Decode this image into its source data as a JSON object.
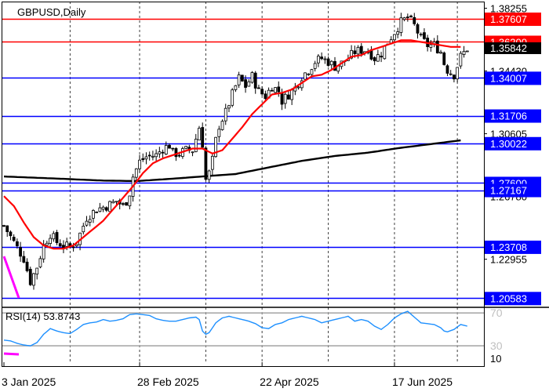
{
  "chart_data": {
    "type": "candlestick",
    "symbol_label": "GBPUSD,Daily",
    "timeframe": "Daily",
    "price_axis": {
      "ylim": [
        1.2012,
        1.3866
      ],
      "ticks": [
        "1.38255",
        "1.34430",
        "1.30605",
        "1.26780",
        "1.22955"
      ]
    },
    "current_price": {
      "label": "1.35842",
      "value": 1.35842
    },
    "levels": [
      {
        "label": "1.37607",
        "value": 1.37607,
        "color": "#ff0000"
      },
      {
        "label": "1.36200",
        "value": 1.362,
        "color": "#ff0000"
      },
      {
        "label": "1.34007",
        "value": 1.34007,
        "color": "#0000ff"
      },
      {
        "label": "1.31706",
        "value": 1.31706,
        "color": "#0000ff"
      },
      {
        "label": "1.30022",
        "value": 1.30022,
        "color": "#0000ff"
      },
      {
        "label": "1.27600",
        "value": 1.276,
        "color": "#0000ff"
      },
      {
        "label": "1.27167",
        "value": 1.27167,
        "color": "#0000ff"
      },
      {
        "label": "1.23708",
        "value": 1.23708,
        "color": "#0000ff"
      },
      {
        "label": "1.20583",
        "value": 1.20583,
        "color": "#0000ff"
      }
    ],
    "x_labels": [
      {
        "label": "3 Jan 2025",
        "bar": 0
      },
      {
        "label": "28 Feb 2025",
        "bar": 41
      },
      {
        "label": "22 Apr 2025",
        "bar": 78
      },
      {
        "label": "17 Jun 2025",
        "bar": 118
      }
    ],
    "vertical_grid_bars": [
      20,
      41,
      61,
      78,
      98,
      118,
      137
    ],
    "ma_fast": {
      "color": "#ff0000",
      "anchors": [
        [
          0,
          1.268
        ],
        [
          3,
          1.262
        ],
        [
          6,
          1.252
        ],
        [
          9,
          1.243
        ],
        [
          12,
          1.238
        ],
        [
          15,
          1.236
        ],
        [
          18,
          1.236
        ],
        [
          21,
          1.238
        ],
        [
          24,
          1.243
        ],
        [
          27,
          1.248
        ],
        [
          30,
          1.253
        ],
        [
          33,
          1.26
        ],
        [
          36,
          1.267
        ],
        [
          39,
          1.274
        ],
        [
          42,
          1.282
        ],
        [
          45,
          1.288
        ],
        [
          48,
          1.291
        ],
        [
          51,
          1.293
        ],
        [
          54,
          1.295
        ],
        [
          57,
          1.297
        ],
        [
          60,
          1.297
        ],
        [
          63,
          1.294
        ],
        [
          66,
          1.296
        ],
        [
          69,
          1.303
        ],
        [
          72,
          1.31
        ],
        [
          75,
          1.318
        ],
        [
          78,
          1.324
        ],
        [
          81,
          1.33
        ],
        [
          84,
          1.331
        ],
        [
          87,
          1.333
        ],
        [
          90,
          1.337
        ],
        [
          93,
          1.341
        ],
        [
          96,
          1.342
        ],
        [
          99,
          1.345
        ],
        [
          102,
          1.349
        ],
        [
          105,
          1.353
        ],
        [
          108,
          1.354
        ],
        [
          111,
          1.357
        ],
        [
          114,
          1.359
        ],
        [
          117,
          1.361
        ],
        [
          120,
          1.363
        ],
        [
          123,
          1.363
        ],
        [
          126,
          1.362
        ],
        [
          129,
          1.361
        ],
        [
          132,
          1.36
        ],
        [
          135,
          1.359
        ],
        [
          138,
          1.359
        ]
      ]
    },
    "ma_slow": {
      "color": "#000000",
      "anchors": [
        [
          0,
          1.28
        ],
        [
          15,
          1.2788
        ],
        [
          30,
          1.2775
        ],
        [
          40,
          1.2772
        ],
        [
          50,
          1.2785
        ],
        [
          60,
          1.28
        ],
        [
          70,
          1.2815
        ],
        [
          80,
          1.2855
        ],
        [
          90,
          1.2895
        ],
        [
          100,
          1.2925
        ],
        [
          110,
          1.2945
        ],
        [
          120,
          1.2975
        ],
        [
          130,
          1.3
        ],
        [
          138,
          1.302
        ]
      ]
    },
    "price_anchors": [
      [
        0,
        1.25
      ],
      [
        3,
        1.24
      ],
      [
        6,
        1.23
      ],
      [
        8,
        1.216
      ],
      [
        10,
        1.225
      ],
      [
        12,
        1.238
      ],
      [
        14,
        1.245
      ],
      [
        16,
        1.24
      ],
      [
        18,
        1.238
      ],
      [
        20,
        1.237
      ],
      [
        22,
        1.24
      ],
      [
        25,
        1.255
      ],
      [
        28,
        1.26
      ],
      [
        31,
        1.262
      ],
      [
        34,
        1.265
      ],
      [
        36,
        1.262
      ],
      [
        37,
        1.265
      ],
      [
        38,
        1.27
      ],
      [
        39,
        1.28
      ],
      [
        41,
        1.289
      ],
      [
        43,
        1.292
      ],
      [
        46,
        1.293
      ],
      [
        48,
        1.297
      ],
      [
        50,
        1.299
      ],
      [
        51,
        1.294
      ],
      [
        53,
        1.294
      ],
      [
        55,
        1.296
      ],
      [
        57,
        1.296
      ],
      [
        58,
        1.303
      ],
      [
        59,
        1.31
      ],
      [
        60,
        1.3
      ],
      [
        61,
        1.278
      ],
      [
        62,
        1.282
      ],
      [
        63,
        1.29
      ],
      [
        64,
        1.302
      ],
      [
        65,
        1.311
      ],
      [
        67,
        1.319
      ],
      [
        69,
        1.33
      ],
      [
        71,
        1.34
      ],
      [
        73,
        1.335
      ],
      [
        75,
        1.341
      ],
      [
        77,
        1.332
      ],
      [
        79,
        1.329
      ],
      [
        81,
        1.335
      ],
      [
        83,
        1.332
      ],
      [
        84,
        1.326
      ],
      [
        86,
        1.33
      ],
      [
        88,
        1.334
      ],
      [
        90,
        1.341
      ],
      [
        92,
        1.345
      ],
      [
        94,
        1.35
      ],
      [
        96,
        1.352
      ],
      [
        98,
        1.35
      ],
      [
        100,
        1.347
      ],
      [
        102,
        1.349
      ],
      [
        104,
        1.352
      ],
      [
        106,
        1.356
      ],
      [
        108,
        1.357
      ],
      [
        110,
        1.357
      ],
      [
        112,
        1.352
      ],
      [
        114,
        1.355
      ],
      [
        116,
        1.362
      ],
      [
        118,
        1.368
      ],
      [
        120,
        1.374
      ],
      [
        122,
        1.377
      ],
      [
        124,
        1.372
      ],
      [
        126,
        1.364
      ],
      [
        128,
        1.36
      ],
      [
        130,
        1.36
      ],
      [
        132,
        1.356
      ],
      [
        133,
        1.349
      ],
      [
        134,
        1.345
      ],
      [
        136,
        1.342
      ],
      [
        138,
        1.353
      ],
      [
        140,
        1.358
      ]
    ],
    "rsi": {
      "label": "RSI(14) 53.8743",
      "period": 14,
      "value": 53.8743,
      "levels": [
        {
          "label": "70",
          "value": 70
        },
        {
          "label": "30",
          "value": 30
        }
      ],
      "range_label": "10",
      "ylim": [
        10,
        75
      ],
      "line_color": "#1e90ff",
      "anchors": [
        [
          0,
          37
        ],
        [
          2,
          36
        ],
        [
          4,
          33
        ],
        [
          6,
          31
        ],
        [
          8,
          30
        ],
        [
          10,
          34
        ],
        [
          12,
          44
        ],
        [
          14,
          51
        ],
        [
          16,
          48
        ],
        [
          18,
          46
        ],
        [
          20,
          45
        ],
        [
          22,
          50
        ],
        [
          24,
          56
        ],
        [
          26,
          58
        ],
        [
          28,
          59
        ],
        [
          30,
          62
        ],
        [
          32,
          60
        ],
        [
          34,
          61
        ],
        [
          36,
          63
        ],
        [
          38,
          68
        ],
        [
          40,
          69
        ],
        [
          42,
          68
        ],
        [
          44,
          67
        ],
        [
          46,
          63
        ],
        [
          48,
          61
        ],
        [
          50,
          60
        ],
        [
          52,
          60
        ],
        [
          54,
          62
        ],
        [
          56,
          64
        ],
        [
          58,
          65
        ],
        [
          59,
          62
        ],
        [
          60,
          48
        ],
        [
          61,
          44
        ],
        [
          62,
          46
        ],
        [
          63,
          52
        ],
        [
          64,
          58
        ],
        [
          66,
          64
        ],
        [
          68,
          66
        ],
        [
          70,
          64
        ],
        [
          72,
          62
        ],
        [
          74,
          60
        ],
        [
          76,
          57
        ],
        [
          78,
          52
        ],
        [
          80,
          51
        ],
        [
          82,
          56
        ],
        [
          84,
          58
        ],
        [
          86,
          62
        ],
        [
          88,
          64
        ],
        [
          90,
          66
        ],
        [
          92,
          64
        ],
        [
          94,
          62
        ],
        [
          96,
          58
        ],
        [
          98,
          60
        ],
        [
          100,
          62
        ],
        [
          102,
          64
        ],
        [
          104,
          66
        ],
        [
          106,
          60
        ],
        [
          108,
          62
        ],
        [
          110,
          60
        ],
        [
          112,
          54
        ],
        [
          114,
          50
        ],
        [
          116,
          56
        ],
        [
          118,
          64
        ],
        [
          120,
          69
        ],
        [
          122,
          72
        ],
        [
          124,
          65
        ],
        [
          126,
          58
        ],
        [
          128,
          57
        ],
        [
          130,
          56
        ],
        [
          132,
          52
        ],
        [
          133,
          48
        ],
        [
          134,
          47
        ],
        [
          136,
          50
        ],
        [
          138,
          56
        ],
        [
          140,
          54
        ]
      ]
    },
    "trendline_color": "#ff00ff"
  }
}
